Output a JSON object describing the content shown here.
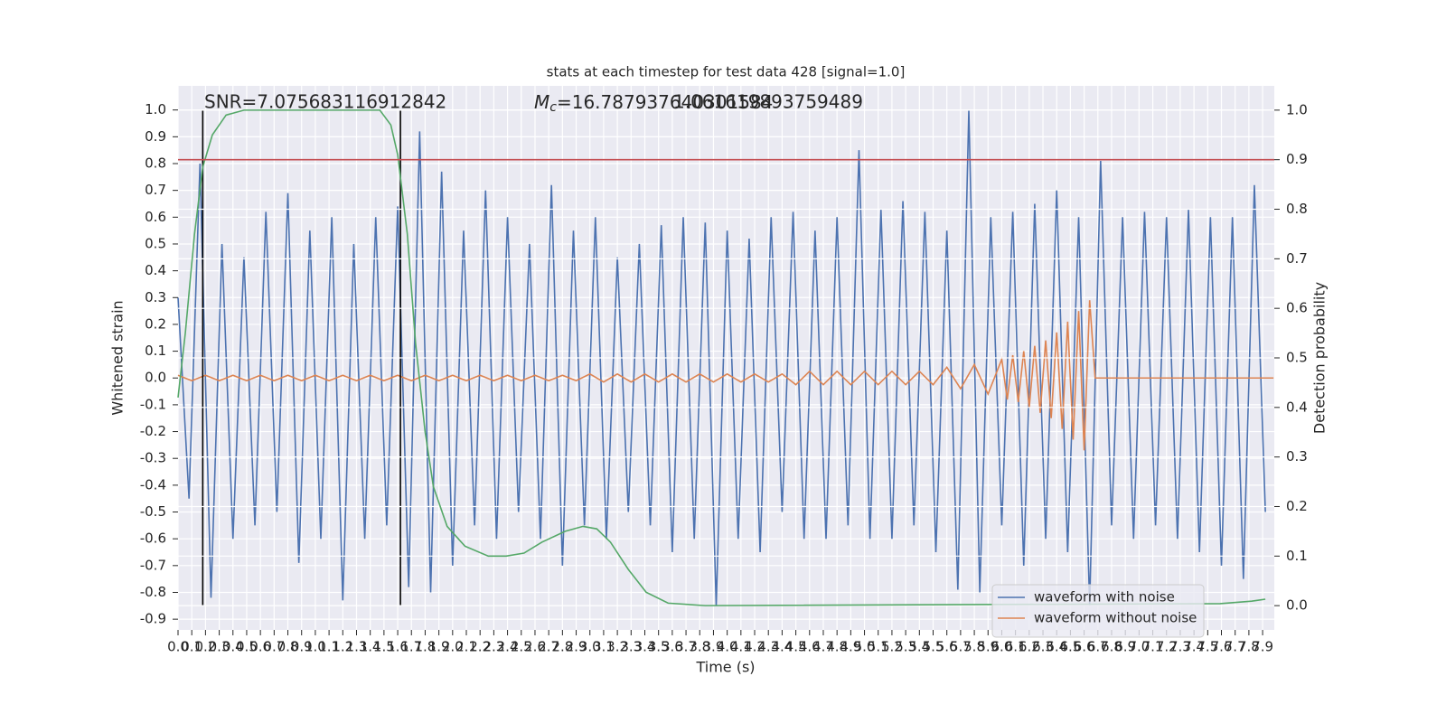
{
  "chart_data": {
    "type": "line",
    "title": "stats at each timestep for test data 428 [signal=1.0]",
    "xlabel": "Time (s)",
    "ylabel": "Whitened strain",
    "y2label": "Detection probability",
    "annotations": [
      {
        "text": "SNR=7.075683116912842"
      },
      {
        "symbol": "M",
        "subscript": "c",
        "text": "=16.787937640301584"
      },
      {
        "text": "1.061619893759489"
      }
    ],
    "xlim": [
      0,
      7.985
    ],
    "ylim": [
      -0.94,
      1.09
    ],
    "y2lim": [
      -0.049,
      1.049
    ],
    "grid": true,
    "legend": "lower right",
    "xticks": [
      {
        "value": 0,
        "label": "0.0"
      },
      0.1,
      0.2,
      0.3,
      0.4,
      0.5,
      0.6,
      0.7,
      0.8,
      0.9,
      {
        "value": 1,
        "label": "1.0"
      },
      1.1,
      1.2,
      1.3,
      1.4,
      1.5,
      1.6,
      1.7,
      1.8,
      1.9,
      {
        "value": 2,
        "label": "2.0"
      },
      2.1,
      2.2,
      2.3,
      2.4,
      2.5,
      2.6,
      2.7,
      2.8,
      2.9,
      {
        "value": 3,
        "label": "3.0"
      },
      3.1,
      3.2,
      3.3,
      3.4,
      3.5,
      3.6,
      3.7,
      3.8,
      3.9,
      {
        "value": 4,
        "label": "4.0"
      },
      4.1,
      4.2,
      4.3,
      4.4,
      4.5,
      4.6,
      4.7,
      4.8,
      4.9,
      {
        "value": 5,
        "label": "5.0"
      },
      5.1,
      5.2,
      5.3,
      5.4,
      5.5,
      5.6,
      5.7,
      5.8,
      5.9,
      {
        "value": 6,
        "label": "6.0"
      },
      6.1,
      6.2,
      6.3,
      6.4,
      6.5,
      6.6,
      6.7,
      6.8,
      6.9,
      {
        "value": 7,
        "label": "7.0"
      },
      7.1,
      7.2,
      7.3,
      7.4,
      7.5,
      7.6,
      7.7,
      7.8,
      7.9
    ],
    "yticks": [
      {
        "value": 1,
        "label": "1.0"
      },
      0.9,
      0.8,
      0.7,
      0.6,
      0.5,
      0.4,
      0.3,
      0.2,
      0.1,
      {
        "value": 0,
        "label": "0.0"
      },
      -0.1,
      -0.2,
      -0.3,
      -0.4,
      -0.5,
      -0.6,
      -0.7,
      -0.8,
      -0.9
    ],
    "y2ticks": [
      {
        "value": 1,
        "label": "1.0"
      },
      0.9,
      0.8,
      0.7,
      0.6,
      0.5,
      0.4,
      0.3,
      0.2,
      0.1,
      {
        "value": 0,
        "label": "0.0"
      }
    ],
    "series": [
      {
        "name": "waveform with noise",
        "color": "#4c72b0",
        "x": [
          0,
          0.08,
          0.16,
          0.24,
          0.32,
          0.4,
          0.48,
          0.56,
          0.64,
          0.72,
          0.8,
          0.88,
          0.96,
          1.04,
          1.12,
          1.2,
          1.28,
          1.36,
          1.44,
          1.52,
          1.6,
          1.68,
          1.76,
          1.84,
          1.92,
          2,
          2.08,
          2.16,
          2.24,
          2.32,
          2.4,
          2.48,
          2.56,
          2.64,
          2.72,
          2.8,
          2.88,
          2.96,
          3.04,
          3.12,
          3.2,
          3.28,
          3.36,
          3.44,
          3.52,
          3.6,
          3.68,
          3.76,
          3.84,
          3.92,
          4,
          4.08,
          4.16,
          4.24,
          4.32,
          4.4,
          4.48,
          4.56,
          4.64,
          4.72,
          4.8,
          4.88,
          4.96,
          5.04,
          5.12,
          5.2,
          5.28,
          5.36,
          5.44,
          5.52,
          5.6,
          5.68,
          5.76,
          5.84,
          5.92,
          6,
          6.08,
          6.16,
          6.24,
          6.32,
          6.4,
          6.48,
          6.56,
          6.64,
          6.72,
          6.8,
          6.88,
          6.96,
          7.04,
          7.12,
          7.2,
          7.28,
          7.36,
          7.44,
          7.52,
          7.6,
          7.68,
          7.76,
          7.84,
          7.92
        ],
        "values": [
          0.3,
          -0.45,
          0.8,
          -0.82,
          0.5,
          -0.6,
          0.45,
          -0.55,
          0.62,
          -0.5,
          0.69,
          -0.69,
          0.55,
          -0.6,
          0.6,
          -0.83,
          0.5,
          -0.6,
          0.6,
          -0.55,
          0.64,
          -0.78,
          0.92,
          -0.8,
          0.77,
          -0.7,
          0.55,
          -0.55,
          0.7,
          -0.6,
          0.6,
          -0.5,
          0.5,
          -0.6,
          0.72,
          -0.7,
          0.55,
          -0.55,
          0.6,
          -0.6,
          0.45,
          -0.5,
          0.5,
          -0.55,
          0.57,
          -0.65,
          0.6,
          -0.6,
          0.58,
          -0.85,
          0.55,
          -0.6,
          0.52,
          -0.65,
          0.6,
          -0.5,
          0.62,
          -0.6,
          0.55,
          -0.6,
          0.6,
          -0.55,
          0.85,
          -0.6,
          0.63,
          -0.6,
          0.66,
          -0.55,
          0.62,
          -0.65,
          0.55,
          -0.79,
          1.0,
          -0.8,
          0.6,
          -0.55,
          0.62,
          -0.7,
          0.65,
          -0.6,
          0.7,
          -0.65,
          0.6,
          -0.85,
          0.81,
          -0.55,
          0.6,
          -0.6,
          0.62,
          -0.55,
          0.6,
          -0.6,
          0.63,
          -0.65,
          0.6,
          -0.7,
          0.6,
          -0.75,
          0.72,
          -0.5
        ]
      },
      {
        "name": "waveform without noise",
        "color": "#dd8452",
        "x": [
          0,
          0.1,
          0.2,
          0.3,
          0.4,
          0.5,
          0.6,
          0.7,
          0.8,
          0.9,
          1,
          1.1,
          1.2,
          1.3,
          1.4,
          1.5,
          1.6,
          1.7,
          1.8,
          1.9,
          2,
          2.1,
          2.2,
          2.3,
          2.4,
          2.5,
          2.6,
          2.7,
          2.8,
          2.9,
          3,
          3.1,
          3.2,
          3.3,
          3.4,
          3.5,
          3.6,
          3.7,
          3.8,
          3.9,
          4,
          4.1,
          4.2,
          4.3,
          4.4,
          4.5,
          4.6,
          4.7,
          4.8,
          4.9,
          5,
          5.1,
          5.2,
          5.3,
          5.4,
          5.5,
          5.6,
          5.7,
          5.8,
          5.9,
          6,
          6.04,
          6.08,
          6.12,
          6.16,
          6.2,
          6.24,
          6.28,
          6.32,
          6.36,
          6.4,
          6.44,
          6.48,
          6.52,
          6.56,
          6.6,
          6.64,
          6.68,
          7.98
        ],
        "values": [
          0.01,
          -0.01,
          0.01,
          -0.01,
          0.01,
          -0.01,
          0.01,
          -0.01,
          0.01,
          -0.01,
          0.01,
          -0.01,
          0.01,
          -0.01,
          0.01,
          -0.01,
          0.01,
          -0.01,
          0.01,
          -0.01,
          0.01,
          -0.01,
          0.01,
          -0.01,
          0.01,
          -0.01,
          0.01,
          -0.01,
          0.01,
          -0.01,
          0.015,
          -0.015,
          0.015,
          -0.015,
          0.015,
          -0.015,
          0.015,
          -0.015,
          0.015,
          -0.015,
          0.015,
          -0.015,
          0.015,
          -0.015,
          0.015,
          -0.025,
          0.025,
          -0.025,
          0.025,
          -0.025,
          0.025,
          -0.025,
          0.025,
          -0.025,
          0.025,
          -0.025,
          0.04,
          -0.04,
          0.05,
          -0.06,
          0.07,
          -0.08,
          0.085,
          -0.09,
          0.1,
          -0.11,
          0.12,
          -0.13,
          0.14,
          -0.15,
          0.17,
          -0.19,
          0.21,
          -0.23,
          0.25,
          -0.27,
          0.29,
          0,
          0
        ]
      },
      {
        "color": "#55a868",
        "axis": "y2",
        "x": [
          0,
          0.053,
          0.12,
          0.18,
          0.25,
          0.35,
          0.48,
          1.47,
          1.55,
          1.6,
          1.67,
          1.73,
          1.8,
          1.86,
          1.96,
          2.09,
          2.26,
          2.39,
          2.52,
          2.65,
          2.82,
          2.95,
          3.05,
          3.15,
          3.28,
          3.41,
          3.57,
          3.84,
          7.59,
          7.82,
          7.92
        ],
        "values": [
          0.42,
          0.55,
          0.75,
          0.885,
          0.95,
          0.99,
          1.0,
          1.0,
          0.97,
          0.91,
          0.75,
          0.53,
          0.35,
          0.24,
          0.16,
          0.12,
          0.1,
          0.1,
          0.106,
          0.128,
          0.15,
          0.16,
          0.155,
          0.128,
          0.073,
          0.027,
          0.005,
          0.0,
          0.004,
          0.009,
          0.013
        ]
      }
    ],
    "hline": {
      "value": 0.9,
      "axis": "y2",
      "color": "#c44e52"
    },
    "vlines": {
      "x": [
        0.18,
        1.62
      ],
      "ymin": -0.85,
      "ymax": 1.0,
      "color": "#000000"
    }
  }
}
